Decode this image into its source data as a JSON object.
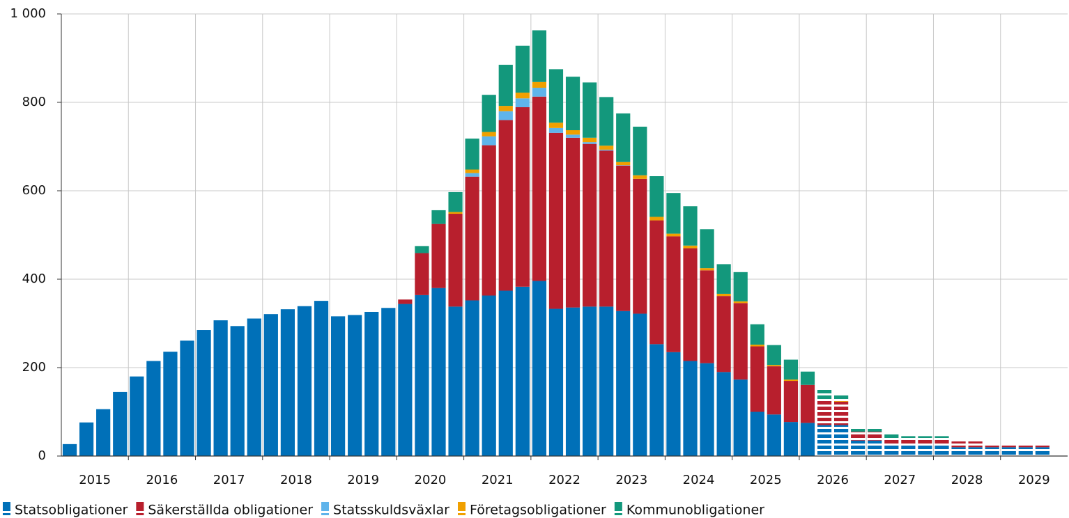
{
  "chart_data": {
    "type": "stacked_bar",
    "year_labels": [
      2015,
      2016,
      2017,
      2018,
      2019,
      2020,
      2021,
      2022,
      2023,
      2024,
      2025,
      2026,
      2027,
      2028,
      2029
    ],
    "periods_per_year": 4,
    "dashed_from": 45,
    "ylim": [
      0,
      1000
    ],
    "yticks": [
      0,
      200,
      400,
      600,
      800,
      {
        "value": 1000,
        "label": "1 000"
      }
    ],
    "grid": true,
    "legend": "bottom-left",
    "series": [
      {
        "name": "Statsobligationer",
        "color": "#0070b8",
        "values": [
          27,
          76,
          106,
          145,
          180,
          215,
          236,
          261,
          285,
          307,
          294,
          311,
          321,
          332,
          339,
          351,
          316,
          319,
          326,
          335,
          344,
          364,
          380,
          338,
          352,
          363,
          374,
          383,
          396,
          333,
          336,
          338,
          338,
          328,
          322,
          253,
          235,
          215,
          210,
          190,
          173,
          100,
          94,
          77,
          75,
          70,
          70,
          35,
          35,
          25,
          25,
          25,
          25,
          20,
          20,
          20,
          20,
          20,
          20
        ]
      },
      {
        "name": "Säkerställda obligationer",
        "color": "#b81f2d",
        "values": [
          0,
          0,
          0,
          0,
          0,
          0,
          0,
          0,
          0,
          0,
          0,
          0,
          0,
          0,
          0,
          0,
          0,
          0,
          0,
          0,
          10,
          95,
          145,
          210,
          280,
          340,
          386,
          406,
          417,
          398,
          384,
          368,
          353,
          329,
          305,
          280,
          262,
          255,
          210,
          172,
          173,
          148,
          109,
          93,
          86,
          56,
          53,
          20,
          20,
          15,
          13,
          13,
          13,
          13,
          13,
          7,
          7,
          7,
          7
        ]
      },
      {
        "name": "Statsskuldsväxlar",
        "color": "#5fb4eb",
        "values": [
          0,
          0,
          0,
          0,
          0,
          0,
          0,
          0,
          0,
          0,
          0,
          0,
          0,
          0,
          0,
          0,
          0,
          0,
          0,
          0,
          0,
          0,
          0,
          0,
          8,
          20,
          20,
          20,
          20,
          11,
          7,
          4,
          2,
          1,
          0,
          0,
          0,
          0,
          0,
          0,
          0,
          0,
          0,
          0,
          0,
          0,
          0,
          0,
          0,
          0,
          0,
          0,
          0,
          0,
          0,
          0,
          0,
          0,
          0
        ]
      },
      {
        "name": "Företagsobligationer",
        "color": "#f0a000",
        "values": [
          0,
          0,
          0,
          0,
          0,
          0,
          0,
          0,
          0,
          0,
          0,
          0,
          0,
          0,
          0,
          0,
          0,
          0,
          0,
          0,
          0,
          0,
          0,
          4,
          8,
          10,
          12,
          13,
          13,
          12,
          10,
          10,
          9,
          7,
          8,
          8,
          6,
          6,
          5,
          5,
          4,
          4,
          3,
          3,
          0,
          2,
          2,
          0,
          0,
          0,
          0,
          0,
          0,
          0,
          0,
          0,
          0,
          0,
          0
        ]
      },
      {
        "name": "Kommunobligationer",
        "color": "#13987c",
        "values": [
          0,
          0,
          0,
          0,
          0,
          0,
          0,
          0,
          0,
          0,
          0,
          0,
          0,
          0,
          0,
          0,
          0,
          0,
          0,
          0,
          0,
          16,
          31,
          45,
          70,
          84,
          93,
          106,
          117,
          121,
          121,
          125,
          110,
          110,
          110,
          92,
          92,
          89,
          88,
          67,
          66,
          46,
          45,
          45,
          30,
          24,
          12,
          10,
          7,
          10,
          7,
          7,
          7,
          0,
          0,
          0,
          0,
          0,
          0
        ]
      }
    ]
  }
}
